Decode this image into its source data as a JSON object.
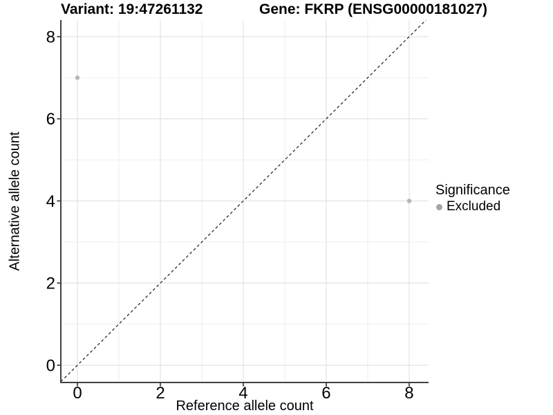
{
  "chart_data": {
    "type": "scatter",
    "title_left": "Variant: 19:47261132",
    "title_right": "Gene: FKRP (ENSG00000181027)",
    "xlabel": "Reference allele count",
    "ylabel": "Alternative allele count",
    "xlim": [
      -0.4,
      8.467
    ],
    "ylim": [
      -0.421,
      8.404
    ],
    "x_ticks": [
      0,
      2,
      4,
      6,
      8
    ],
    "y_ticks": [
      0,
      2,
      4,
      6,
      8
    ],
    "x_minor_ticks": [
      1,
      3,
      5,
      7
    ],
    "y_minor_ticks": [
      1,
      3,
      5,
      7
    ],
    "grid": "major+minor",
    "points": [
      {
        "x": 0,
        "y": 7,
        "series": "Excluded"
      },
      {
        "x": 8,
        "y": 4,
        "series": "Excluded"
      }
    ],
    "identity_line": {
      "slope": 1,
      "intercept": 0,
      "style": "dashed",
      "color": "#1a1a1a"
    },
    "legend": {
      "position": "right",
      "title": "Significance",
      "items": [
        {
          "label": "Excluded",
          "color": "#a4a4a4"
        }
      ]
    },
    "colors": {
      "point": "#b5b5b5",
      "axis_line": "#404040",
      "grid_major": "#e2e2e2",
      "grid_minor": "#eeeeee",
      "tick_text": "#000000",
      "background": "#ffffff"
    }
  }
}
